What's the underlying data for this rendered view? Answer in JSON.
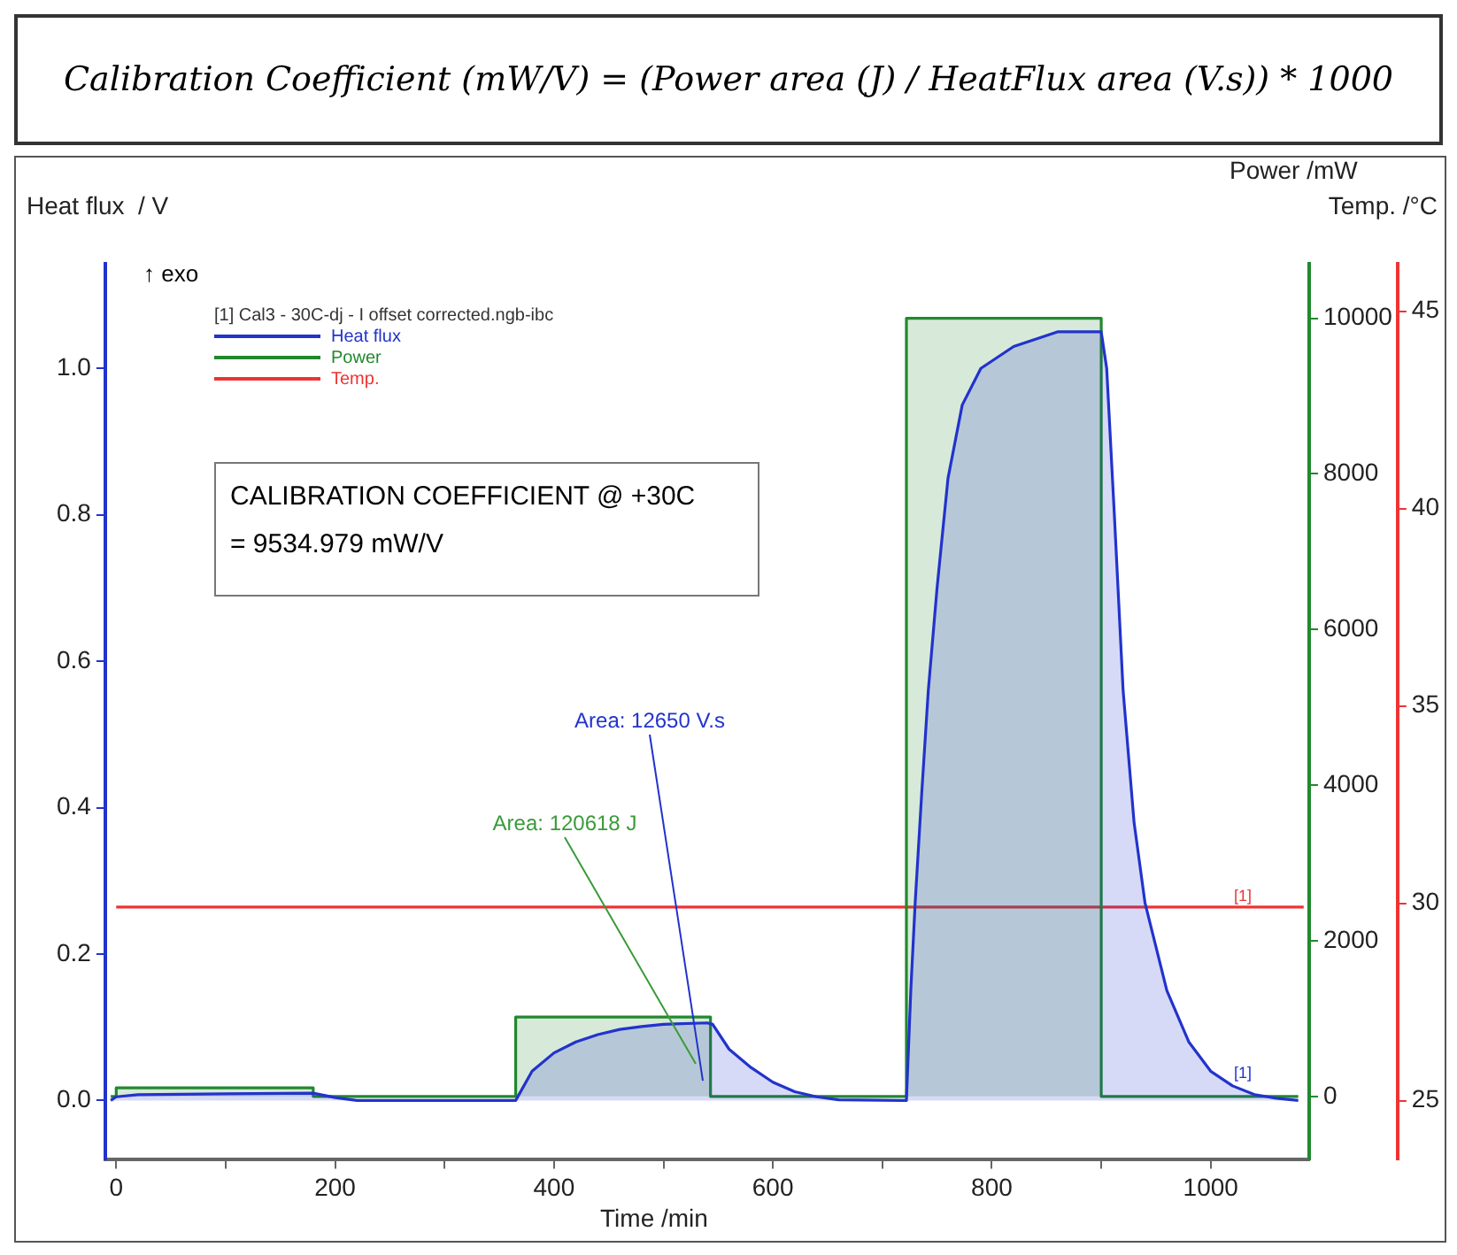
{
  "chart_data": {
    "type": "line",
    "title": "Calibration Coefficient (mW/V) = (Power area (J) / HeatFlux area (V.s)) * 1000",
    "xlabel": "Time /min",
    "ylabel": "Heat flux  / V",
    "y2label": "Power /mW",
    "y3label": "Temp. /°C",
    "legend_title": "[1] Cal3 - 30C-dj - I offset corrected.ngb-ibc",
    "legend": "top left",
    "grid": false,
    "xlim": [
      -10,
      1090
    ],
    "xticks": [
      0,
      {
        "value": 100,
        "label": null
      },
      200,
      {
        "value": 300,
        "label": null
      },
      400,
      {
        "value": 500,
        "label": null
      },
      600,
      {
        "value": 700,
        "label": null
      },
      800,
      {
        "value": 900,
        "label": null
      },
      1000
    ],
    "ylim": [
      -0.081,
      1.143
    ],
    "yticks": [
      {
        "value": 0,
        "label": "0.0"
      },
      0.2,
      0.4,
      0.6,
      0.8,
      {
        "value": 1,
        "label": "1.0"
      }
    ],
    "y2lim": [
      -814,
      10700
    ],
    "y2ticks": [
      0,
      2000,
      4000,
      6000,
      8000,
      10000
    ],
    "y3lim": [
      23.5,
      46.2
    ],
    "y3ticks": [
      25,
      30,
      35,
      40,
      45
    ],
    "series": [
      {
        "name": "Heat flux",
        "type": "area",
        "color": "#2233cc",
        "x": [
          -5,
          0,
          20,
          180,
          200,
          220,
          365,
          380,
          400,
          420,
          440,
          460,
          480,
          500,
          540,
          545,
          560,
          580,
          600,
          620,
          640,
          660,
          722,
          726,
          730,
          736,
          742,
          750,
          760,
          773,
          790,
          820,
          860,
          900,
          905,
          912,
          920,
          930,
          940,
          960,
          980,
          1000,
          1020,
          1040,
          1060,
          1080
        ],
        "values": [
          0,
          0.005,
          0.008,
          0.01,
          0.004,
          0,
          0,
          0.04,
          0.065,
          0.08,
          0.09,
          0.097,
          0.101,
          0.104,
          0.106,
          0.104,
          0.07,
          0.045,
          0.025,
          0.012,
          0.005,
          0.001,
          0,
          0.15,
          0.27,
          0.42,
          0.56,
          0.7,
          0.85,
          0.95,
          1.0,
          1.03,
          1.05,
          1.05,
          1.0,
          0.8,
          0.56,
          0.38,
          0.27,
          0.15,
          0.08,
          0.04,
          0.02,
          0.008,
          0.003,
          0
        ]
      },
      {
        "name": "Power",
        "type": "area",
        "axis": "y2",
        "color": "#22882e",
        "x": [
          -5,
          0,
          0,
          180,
          180,
          365,
          365,
          543,
          543,
          722,
          722,
          900,
          900,
          1080
        ],
        "values": [
          0,
          0,
          110,
          110,
          0,
          0,
          1020,
          1020,
          0,
          0,
          10000,
          10000,
          0,
          0
        ]
      },
      {
        "name": "Temp.",
        "type": "line",
        "axis": "y3",
        "color": "#ee3333",
        "x": [
          0,
          1085
        ],
        "values": [
          29.9,
          29.9
        ]
      }
    ],
    "annotations": [
      "↑ exo",
      "CALIBRATION COEFFICIENT @ +30C",
      "= 9534.979 mW/V",
      "Area: 120618 J",
      {
        "text": "Area: 12650 V.s",
        "x": 536,
        "y": 0.027
      },
      "[1]",
      "[1]"
    ]
  }
}
